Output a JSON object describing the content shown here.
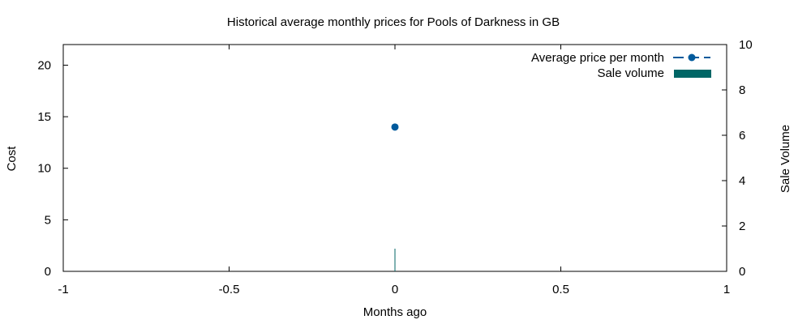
{
  "chart_data": {
    "type": "line",
    "title": "Historical average monthly prices for Pools of Darkness in GB",
    "xlabel": "Months ago",
    "ylabel": "Cost",
    "y2label": "Sale Volume",
    "xlim": [
      -1,
      1
    ],
    "ylim": [
      0,
      22
    ],
    "y2lim": [
      0,
      10
    ],
    "x_ticks": [
      "-1",
      "-0.5",
      "0",
      "0.5",
      "1"
    ],
    "y_ticks": [
      "0",
      "5",
      "10",
      "15",
      "20"
    ],
    "y2_ticks": [
      "0",
      "2",
      "4",
      "6",
      "8",
      "10"
    ],
    "grid": false,
    "legend_position": "top-right",
    "series": [
      {
        "name": "Average price per month",
        "type": "line",
        "axis": "left",
        "color": "#005a9c",
        "points": [
          {
            "x": 0,
            "y": 14
          }
        ]
      },
      {
        "name": "Sale volume",
        "type": "bar",
        "axis": "right",
        "color": "#006666",
        "points": [
          {
            "x": 0,
            "y": 1
          }
        ]
      }
    ]
  }
}
